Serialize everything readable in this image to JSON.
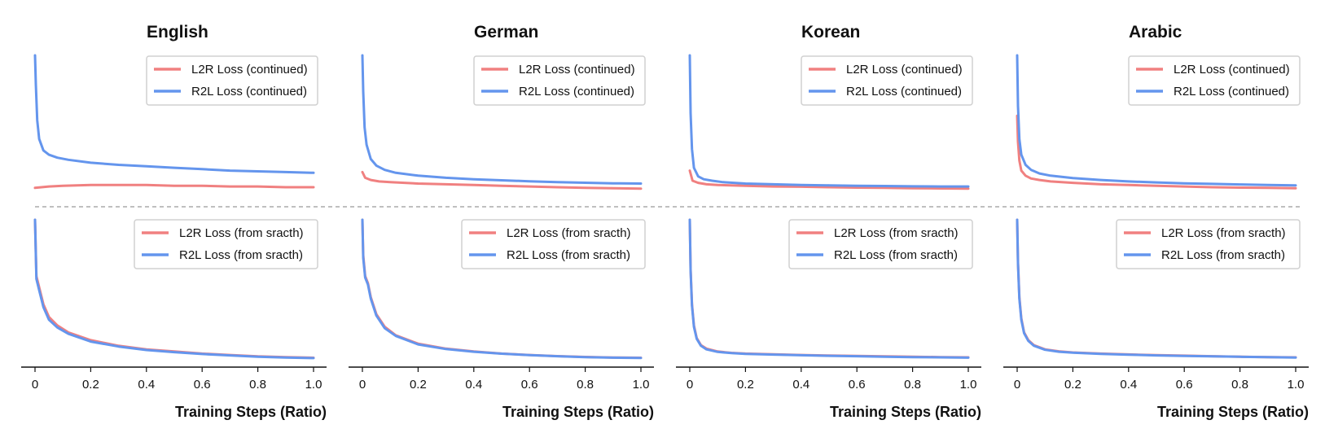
{
  "chart_data": {
    "type": "line",
    "xlabel": "Training Steps (Ratio)",
    "xlim": [
      0,
      1
    ],
    "xticks": [
      0,
      0.2,
      0.4,
      0.6,
      0.8,
      1.0
    ],
    "xtick_labels": [
      "0",
      "0.2",
      "0.4",
      "0.6",
      "0.8",
      "1.0"
    ],
    "colors": {
      "l2r": "#f08080",
      "r2l": "#6495ed"
    },
    "rows": [
      {
        "name": "continued",
        "ylim": [
          0,
          1
        ],
        "legend": [
          "L2R Loss (continued)",
          "R2L Loss (continued)"
        ]
      },
      {
        "name": "from sracth",
        "ylim": [
          0,
          1
        ],
        "legend": [
          "L2R Loss (from sracth)",
          "R2L Loss (from sracth)"
        ]
      }
    ],
    "panels": [
      {
        "title": "English",
        "continued": {
          "l2r": {
            "x": [
              0,
              0.05,
              0.1,
              0.2,
              0.3,
              0.4,
              0.5,
              0.6,
              0.7,
              0.8,
              0.9,
              1.0
            ],
            "y": [
              0.08,
              0.09,
              0.095,
              0.1,
              0.1,
              0.1,
              0.095,
              0.095,
              0.09,
              0.09,
              0.085,
              0.085
            ]
          },
          "r2l": {
            "x": [
              0,
              0.003,
              0.008,
              0.015,
              0.03,
              0.05,
              0.08,
              0.12,
              0.2,
              0.3,
              0.4,
              0.5,
              0.6,
              0.7,
              0.8,
              0.9,
              1.0
            ],
            "y": [
              1.0,
              0.8,
              0.55,
              0.42,
              0.34,
              0.31,
              0.29,
              0.275,
              0.255,
              0.24,
              0.23,
              0.22,
              0.21,
              0.2,
              0.195,
              0.19,
              0.185
            ]
          }
        },
        "scratch": {
          "l2r": {
            "x": [
              0,
              0.005,
              0.015,
              0.03,
              0.05,
              0.08,
              0.12,
              0.2,
              0.3,
              0.4,
              0.5,
              0.6,
              0.7,
              0.8,
              0.9,
              1.0
            ],
            "y": [
              1.0,
              0.6,
              0.52,
              0.4,
              0.31,
              0.25,
              0.2,
              0.145,
              0.105,
              0.08,
              0.065,
              0.05,
              0.04,
              0.03,
              0.025,
              0.02
            ]
          },
          "r2l": {
            "x": [
              0,
              0.005,
              0.015,
              0.03,
              0.05,
              0.08,
              0.12,
              0.2,
              0.3,
              0.4,
              0.5,
              0.6,
              0.7,
              0.8,
              0.9,
              1.0
            ],
            "y": [
              1.0,
              0.58,
              0.5,
              0.38,
              0.29,
              0.235,
              0.19,
              0.135,
              0.1,
              0.075,
              0.06,
              0.047,
              0.037,
              0.028,
              0.022,
              0.018
            ]
          }
        }
      },
      {
        "title": "German",
        "continued": {
          "l2r": {
            "x": [
              0,
              0.01,
              0.03,
              0.06,
              0.1,
              0.2,
              0.3,
              0.4,
              0.5,
              0.6,
              0.7,
              0.8,
              0.9,
              1.0
            ],
            "y": [
              0.19,
              0.15,
              0.135,
              0.125,
              0.12,
              0.11,
              0.105,
              0.1,
              0.095,
              0.09,
              0.085,
              0.08,
              0.078,
              0.075
            ]
          },
          "r2l": {
            "x": [
              0,
              0.003,
              0.008,
              0.015,
              0.03,
              0.05,
              0.08,
              0.12,
              0.2,
              0.3,
              0.4,
              0.5,
              0.6,
              0.7,
              0.8,
              0.9,
              1.0
            ],
            "y": [
              1.0,
              0.75,
              0.5,
              0.38,
              0.28,
              0.235,
              0.205,
              0.185,
              0.165,
              0.15,
              0.14,
              0.133,
              0.126,
              0.12,
              0.116,
              0.112,
              0.11
            ]
          }
        },
        "scratch": {
          "l2r": {
            "x": [
              0,
              0.003,
              0.01,
              0.02,
              0.03,
              0.05,
              0.08,
              0.12,
              0.2,
              0.3,
              0.4,
              0.5,
              0.6,
              0.7,
              0.8,
              0.9,
              1.0
            ],
            "y": [
              1.0,
              0.75,
              0.6,
              0.55,
              0.45,
              0.33,
              0.24,
              0.18,
              0.12,
              0.085,
              0.065,
              0.05,
              0.04,
              0.032,
              0.026,
              0.022,
              0.02
            ]
          },
          "r2l": {
            "x": [
              0,
              0.003,
              0.01,
              0.02,
              0.03,
              0.05,
              0.08,
              0.12,
              0.2,
              0.3,
              0.4,
              0.5,
              0.6,
              0.7,
              0.8,
              0.9,
              1.0
            ],
            "y": [
              1.0,
              0.73,
              0.59,
              0.54,
              0.44,
              0.32,
              0.23,
              0.175,
              0.115,
              0.082,
              0.063,
              0.049,
              0.039,
              0.031,
              0.025,
              0.021,
              0.019
            ]
          }
        }
      },
      {
        "title": "Korean",
        "continued": {
          "l2r": {
            "x": [
              0,
              0.01,
              0.03,
              0.06,
              0.1,
              0.2,
              0.3,
              0.4,
              0.5,
              0.6,
              0.7,
              0.8,
              0.9,
              1.0
            ],
            "y": [
              0.2,
              0.13,
              0.115,
              0.105,
              0.1,
              0.095,
              0.09,
              0.088,
              0.085,
              0.082,
              0.08,
              0.078,
              0.076,
              0.075
            ]
          },
          "r2l": {
            "x": [
              0,
              0.003,
              0.008,
              0.015,
              0.03,
              0.05,
              0.08,
              0.12,
              0.2,
              0.3,
              0.4,
              0.5,
              0.6,
              0.7,
              0.8,
              0.9,
              1.0
            ],
            "y": [
              1.0,
              0.6,
              0.35,
              0.22,
              0.16,
              0.14,
              0.13,
              0.12,
              0.11,
              0.105,
              0.1,
              0.098,
              0.095,
              0.093,
              0.091,
              0.09,
              0.09
            ]
          }
        },
        "scratch": {
          "l2r": {
            "x": [
              0,
              0.003,
              0.008,
              0.015,
              0.025,
              0.04,
              0.06,
              0.1,
              0.15,
              0.2,
              0.3,
              0.4,
              0.5,
              0.6,
              0.7,
              0.8,
              0.9,
              1.0
            ],
            "y": [
              1.0,
              0.65,
              0.4,
              0.25,
              0.16,
              0.11,
              0.085,
              0.065,
              0.055,
              0.05,
              0.045,
              0.04,
              0.036,
              0.033,
              0.03,
              0.027,
              0.025,
              0.023
            ]
          },
          "r2l": {
            "x": [
              0,
              0.003,
              0.008,
              0.015,
              0.025,
              0.04,
              0.06,
              0.1,
              0.15,
              0.2,
              0.3,
              0.4,
              0.5,
              0.6,
              0.7,
              0.8,
              0.9,
              1.0
            ],
            "y": [
              1.0,
              0.64,
              0.39,
              0.24,
              0.155,
              0.105,
              0.08,
              0.062,
              0.053,
              0.048,
              0.043,
              0.038,
              0.034,
              0.031,
              0.028,
              0.025,
              0.023,
              0.021
            ]
          }
        }
      },
      {
        "title": "Arabic",
        "continued": {
          "l2r": {
            "x": [
              0,
              0.003,
              0.008,
              0.015,
              0.03,
              0.05,
              0.08,
              0.12,
              0.2,
              0.3,
              0.4,
              0.5,
              0.6,
              0.7,
              0.8,
              0.9,
              1.0
            ],
            "y": [
              0.58,
              0.4,
              0.27,
              0.2,
              0.165,
              0.145,
              0.135,
              0.125,
              0.115,
              0.105,
              0.1,
              0.095,
              0.09,
              0.085,
              0.082,
              0.08,
              0.078
            ]
          },
          "r2l": {
            "x": [
              0,
              0.003,
              0.008,
              0.015,
              0.03,
              0.05,
              0.08,
              0.12,
              0.2,
              0.3,
              0.4,
              0.5,
              0.6,
              0.7,
              0.8,
              0.9,
              1.0
            ],
            "y": [
              1.0,
              0.65,
              0.42,
              0.31,
              0.24,
              0.205,
              0.18,
              0.165,
              0.148,
              0.135,
              0.125,
              0.118,
              0.112,
              0.108,
              0.104,
              0.1,
              0.098
            ]
          }
        },
        "scratch": {
          "l2r": {
            "x": [
              0,
              0.003,
              0.008,
              0.015,
              0.025,
              0.04,
              0.06,
              0.1,
              0.15,
              0.2,
              0.3,
              0.4,
              0.5,
              0.6,
              0.7,
              0.8,
              0.9,
              1.0
            ],
            "y": [
              1.0,
              0.7,
              0.45,
              0.3,
              0.2,
              0.145,
              0.11,
              0.08,
              0.066,
              0.058,
              0.05,
              0.044,
              0.039,
              0.035,
              0.031,
              0.028,
              0.025,
              0.023
            ]
          },
          "r2l": {
            "x": [
              0,
              0.003,
              0.008,
              0.015,
              0.025,
              0.04,
              0.06,
              0.1,
              0.15,
              0.2,
              0.3,
              0.4,
              0.5,
              0.6,
              0.7,
              0.8,
              0.9,
              1.0
            ],
            "y": [
              1.0,
              0.69,
              0.44,
              0.29,
              0.195,
              0.14,
              0.106,
              0.077,
              0.063,
              0.056,
              0.048,
              0.042,
              0.037,
              0.033,
              0.03,
              0.027,
              0.024,
              0.022
            ]
          }
        }
      }
    ]
  }
}
